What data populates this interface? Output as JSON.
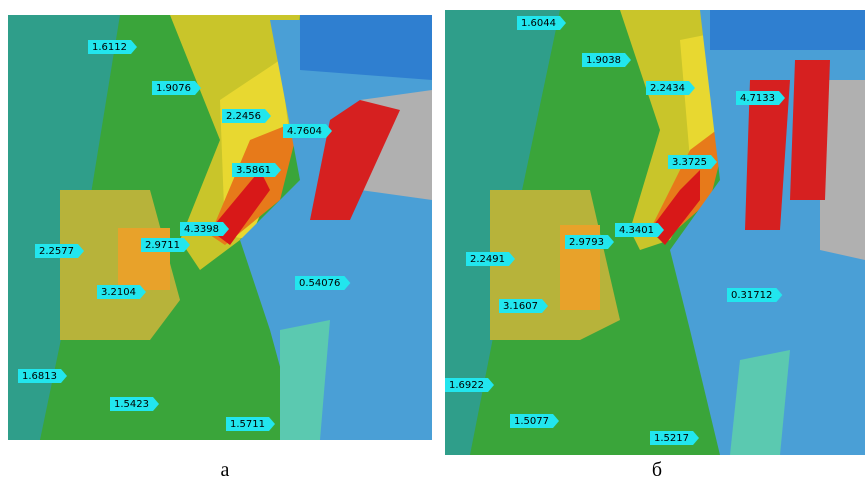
{
  "panels": [
    {
      "caption": "а",
      "labels": [
        "1.6112",
        "1.9076",
        "2.2456",
        "3.5861",
        "4.7604",
        "4.3398",
        "2.9711",
        "2.2577",
        "3.2104",
        "0.54076",
        "1.6813",
        "1.5423",
        "1.5711"
      ]
    },
    {
      "caption": "б",
      "labels": [
        "1.6044",
        "1.9038",
        "2.2434",
        "4.7133",
        "3.3725",
        "4.3401",
        "2.9793",
        "2.2491",
        "3.1607",
        "0.31712",
        "1.6922",
        "1.5077",
        "1.5217"
      ]
    }
  ]
}
